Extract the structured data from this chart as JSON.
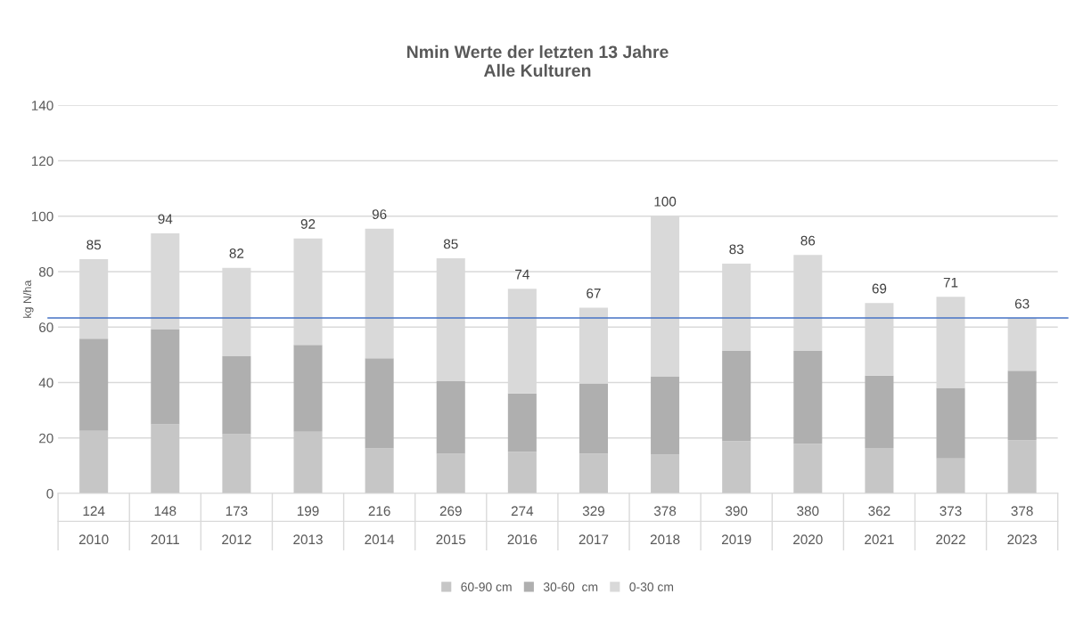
{
  "chart_data": {
    "type": "bar",
    "stacked": true,
    "title": "Nmin Werte der letzten 13 Jahre\nAlle Kulturen",
    "ylabel": "kg N/ha",
    "categories": [
      "124\n2010",
      "148\n2011",
      "173\n2012",
      "199\n2013",
      "216\n2014",
      "269\n2015",
      "274\n2016",
      "329\n2017",
      "378\n2018",
      "390\n2019",
      "380\n2020",
      "362\n2021",
      "373\n2022",
      "378\n2023"
    ],
    "series": [
      {
        "name": "60-90 cm",
        "color": "#c6c6c6",
        "values": [
          22.6,
          24.9,
          21.4,
          22.3,
          16.2,
          14.3,
          15.0,
          14.4,
          14.0,
          18.9,
          17.9,
          16.4,
          12.6,
          19.2
        ]
      },
      {
        "name": "30-60  cm",
        "color": "#afafaf",
        "values": [
          33.2,
          34.4,
          28.1,
          31.3,
          32.6,
          26.2,
          21.1,
          25.3,
          28.1,
          32.5,
          33.5,
          26.1,
          25.5,
          25.1
        ]
      },
      {
        "name": "0-30 cm",
        "color": "#d9d9d9",
        "values": [
          28.7,
          34.5,
          31.9,
          38.4,
          46.7,
          44.3,
          37.7,
          27.3,
          58.0,
          31.5,
          34.6,
          26.2,
          32.8,
          18.9
        ]
      }
    ],
    "totals": [
      "85",
      "94",
      "82",
      "92",
      "96",
      "85",
      "74",
      "67",
      "100",
      "83",
      "86",
      "69",
      "71",
      "63"
    ],
    "ylim": [
      0,
      140
    ],
    "yticks": [
      0,
      20,
      40,
      60,
      80,
      100,
      120,
      140
    ],
    "grid": "y",
    "legend": "bottom",
    "ref_lines": [
      {
        "axis": "y",
        "value": 63.3,
        "color": "#4472c4"
      }
    ]
  }
}
